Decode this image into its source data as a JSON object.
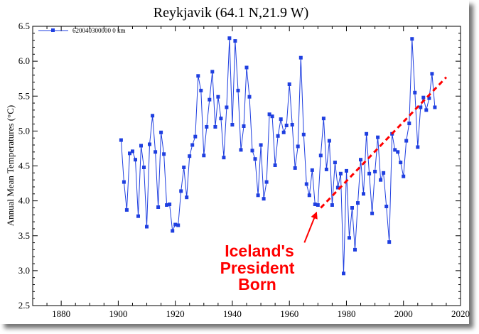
{
  "chart_data": {
    "type": "line",
    "title": "Reykjavik (64.1 N,21.9 W)",
    "xlabel": "",
    "ylabel": "Annual Mean Temperatures (°C)",
    "xlim": [
      1870,
      2020
    ],
    "ylim": [
      2.5,
      6.5
    ],
    "xticks": [
      1880,
      1900,
      1920,
      1940,
      1960,
      1980,
      2000,
      2020
    ],
    "yticks": [
      2.5,
      3.0,
      3.5,
      4.0,
      4.5,
      5.0,
      5.5,
      6.0,
      6.5
    ],
    "ytick_labels": [
      "2.5",
      "3.0",
      "3.5",
      "4.0",
      "4.5",
      "5.0",
      "5.5",
      "6.0",
      "6.5"
    ],
    "legend": {
      "label": "620040300000 0 km",
      "position": "top-left"
    },
    "series": [
      {
        "name": "620040300000 0 km",
        "color": "#1f3fe0",
        "marker": "square",
        "x": [
          1901,
          1902,
          1903,
          1904,
          1905,
          1906,
          1907,
          1908,
          1909,
          1910,
          1911,
          1912,
          1913,
          1914,
          1915,
          1916,
          1917,
          1918,
          1919,
          1920,
          1921,
          1922,
          1923,
          1924,
          1925,
          1926,
          1927,
          1928,
          1929,
          1930,
          1931,
          1932,
          1933,
          1934,
          1935,
          1936,
          1937,
          1938,
          1939,
          1940,
          1941,
          1942,
          1943,
          1944,
          1945,
          1946,
          1947,
          1948,
          1949,
          1950,
          1951,
          1952,
          1953,
          1954,
          1955,
          1956,
          1957,
          1958,
          1959,
          1960,
          1961,
          1962,
          1963,
          1964,
          1965,
          1966,
          1967,
          1968,
          1969,
          1970,
          1971,
          1972,
          1973,
          1974,
          1975,
          1976,
          1977,
          1978,
          1979,
          1980,
          1981,
          1982,
          1983,
          1984,
          1985,
          1986,
          1987,
          1988,
          1989,
          1990,
          1991,
          1992,
          1993,
          1994,
          1995,
          1996,
          1997,
          1998,
          1999,
          2000,
          2001,
          2002,
          2003,
          2004,
          2005,
          2006,
          2007,
          2008,
          2009,
          2010,
          2011
        ],
        "y": [
          4.87,
          4.27,
          3.87,
          4.68,
          4.71,
          4.59,
          3.78,
          4.79,
          4.48,
          3.63,
          4.81,
          5.22,
          4.7,
          3.91,
          4.98,
          4.67,
          3.94,
          3.95,
          3.57,
          3.66,
          3.65,
          4.14,
          4.48,
          4.05,
          4.64,
          4.8,
          4.92,
          5.79,
          5.58,
          4.65,
          5.06,
          5.45,
          5.85,
          5.06,
          5.49,
          5.18,
          4.62,
          5.34,
          6.33,
          5.09,
          6.29,
          5.58,
          4.73,
          5.07,
          5.91,
          5.49,
          4.72,
          4.6,
          4.08,
          4.8,
          4.03,
          4.27,
          5.24,
          5.21,
          4.51,
          4.93,
          5.17,
          4.98,
          5.08,
          5.67,
          5.09,
          4.47,
          4.78,
          6.05,
          4.95,
          4.24,
          4.08,
          4.44,
          3.95,
          3.94,
          4.65,
          5.18,
          4.45,
          4.86,
          3.94,
          4.55,
          4.19,
          4.39,
          2.96,
          4.43,
          3.47,
          3.9,
          3.3,
          3.97,
          4.59,
          4.1,
          4.96,
          4.39,
          3.82,
          4.42,
          4.91,
          4.3,
          4.4,
          3.92,
          3.41,
          4.96,
          4.73,
          4.7,
          4.55,
          4.35,
          4.86,
          5.11,
          6.32,
          5.55,
          4.77,
          5.34,
          5.48,
          5.3,
          5.47,
          5.82,
          5.34
        ]
      }
    ],
    "annotations": [
      {
        "text_lines": [
          "Iceland's",
          "President",
          "Born"
        ],
        "color": "#ff0000",
        "arrow_to": {
          "x": 1970,
          "y": 3.88
        }
      }
    ],
    "trendline": {
      "color": "#ff0000",
      "style": "dashed",
      "from": {
        "x": 1971,
        "y": 3.9
      },
      "to": {
        "x": 2015,
        "y": 5.77
      }
    }
  }
}
